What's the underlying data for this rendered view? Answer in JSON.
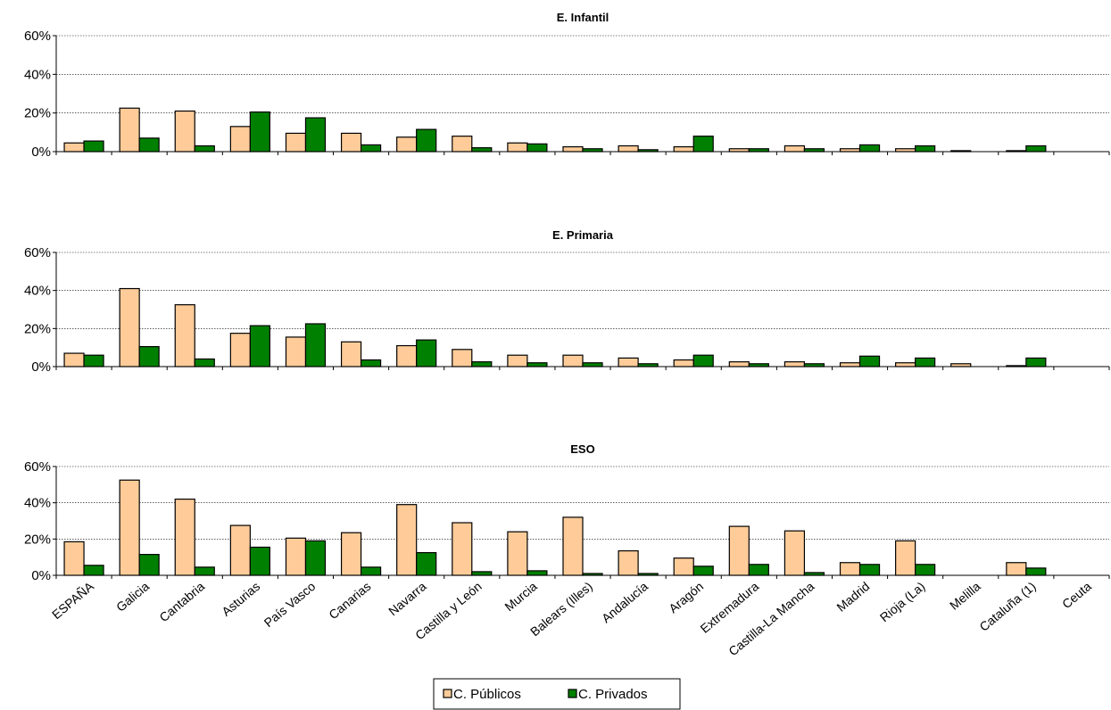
{
  "chart_data": {
    "type": "bar",
    "categories": [
      "ESPAÑA",
      "Galicia",
      "Cantabria",
      "Asturias",
      "País Vasco",
      "Canarias",
      "Navarra",
      "Castilla y León",
      "Murcia",
      "Balears (Illes)",
      "Andalucía",
      "Aragón",
      "Extremadura",
      "Castilla-La Mancha",
      "Madrid",
      "Rioja (La)",
      "Melilla",
      "Cataluña (1)",
      "Ceuta"
    ],
    "legend": [
      "C. Públicos",
      "C. Privados"
    ],
    "colors": {
      "C. Públicos": "#FFCC99",
      "C. Privados": "#008000"
    },
    "y_ticks": [
      "0%",
      "20%",
      "40%",
      "60%"
    ],
    "ylim": [
      0,
      60
    ],
    "grid": true,
    "legend_position": "bottom-center",
    "panels": [
      {
        "title": "E. Infantil",
        "series": [
          {
            "name": "C. Públicos",
            "values": [
              4.5,
              22.5,
              21,
              13,
              9.5,
              9.5,
              7.5,
              8,
              4.5,
              2.5,
              3,
              2.5,
              1.5,
              3,
              1.5,
              1.5,
              0.5,
              0.5,
              0
            ]
          },
          {
            "name": "C. Privados",
            "values": [
              5.5,
              7,
              3,
              20.5,
              17.5,
              3.5,
              11.5,
              2,
              4,
              1.5,
              1,
              8,
              1.5,
              1.5,
              3.5,
              3,
              0,
              3,
              0
            ]
          }
        ]
      },
      {
        "title": "E. Primaria",
        "series": [
          {
            "name": "C. Públicos",
            "values": [
              7,
              41,
              32.5,
              17.5,
              15.5,
              13,
              11,
              9,
              6,
              6,
              4.5,
              3.5,
              2.5,
              2.5,
              2,
              2,
              1.5,
              0.5,
              0
            ]
          },
          {
            "name": "C. Privados",
            "values": [
              6,
              10.5,
              4,
              21.5,
              22.5,
              3.5,
              14,
              2.5,
              2,
              2,
              1.5,
              6,
              1.5,
              1.5,
              5.5,
              4.5,
              0,
              4.5,
              0
            ]
          }
        ]
      },
      {
        "title": "ESO",
        "series": [
          {
            "name": "C. Públicos",
            "values": [
              18.5,
              52.5,
              42,
              27.5,
              20.5,
              23.5,
              39,
              29,
              24,
              32,
              13.5,
              9.5,
              27,
              24.5,
              7,
              19,
              0,
              7,
              0
            ]
          },
          {
            "name": "C. Privados",
            "values": [
              5.5,
              11.5,
              4.5,
              15.5,
              19,
              4.5,
              12.5,
              2,
              2.5,
              1,
              1,
              5,
              6,
              1.5,
              6,
              6,
              0,
              4,
              0
            ]
          }
        ]
      }
    ]
  }
}
